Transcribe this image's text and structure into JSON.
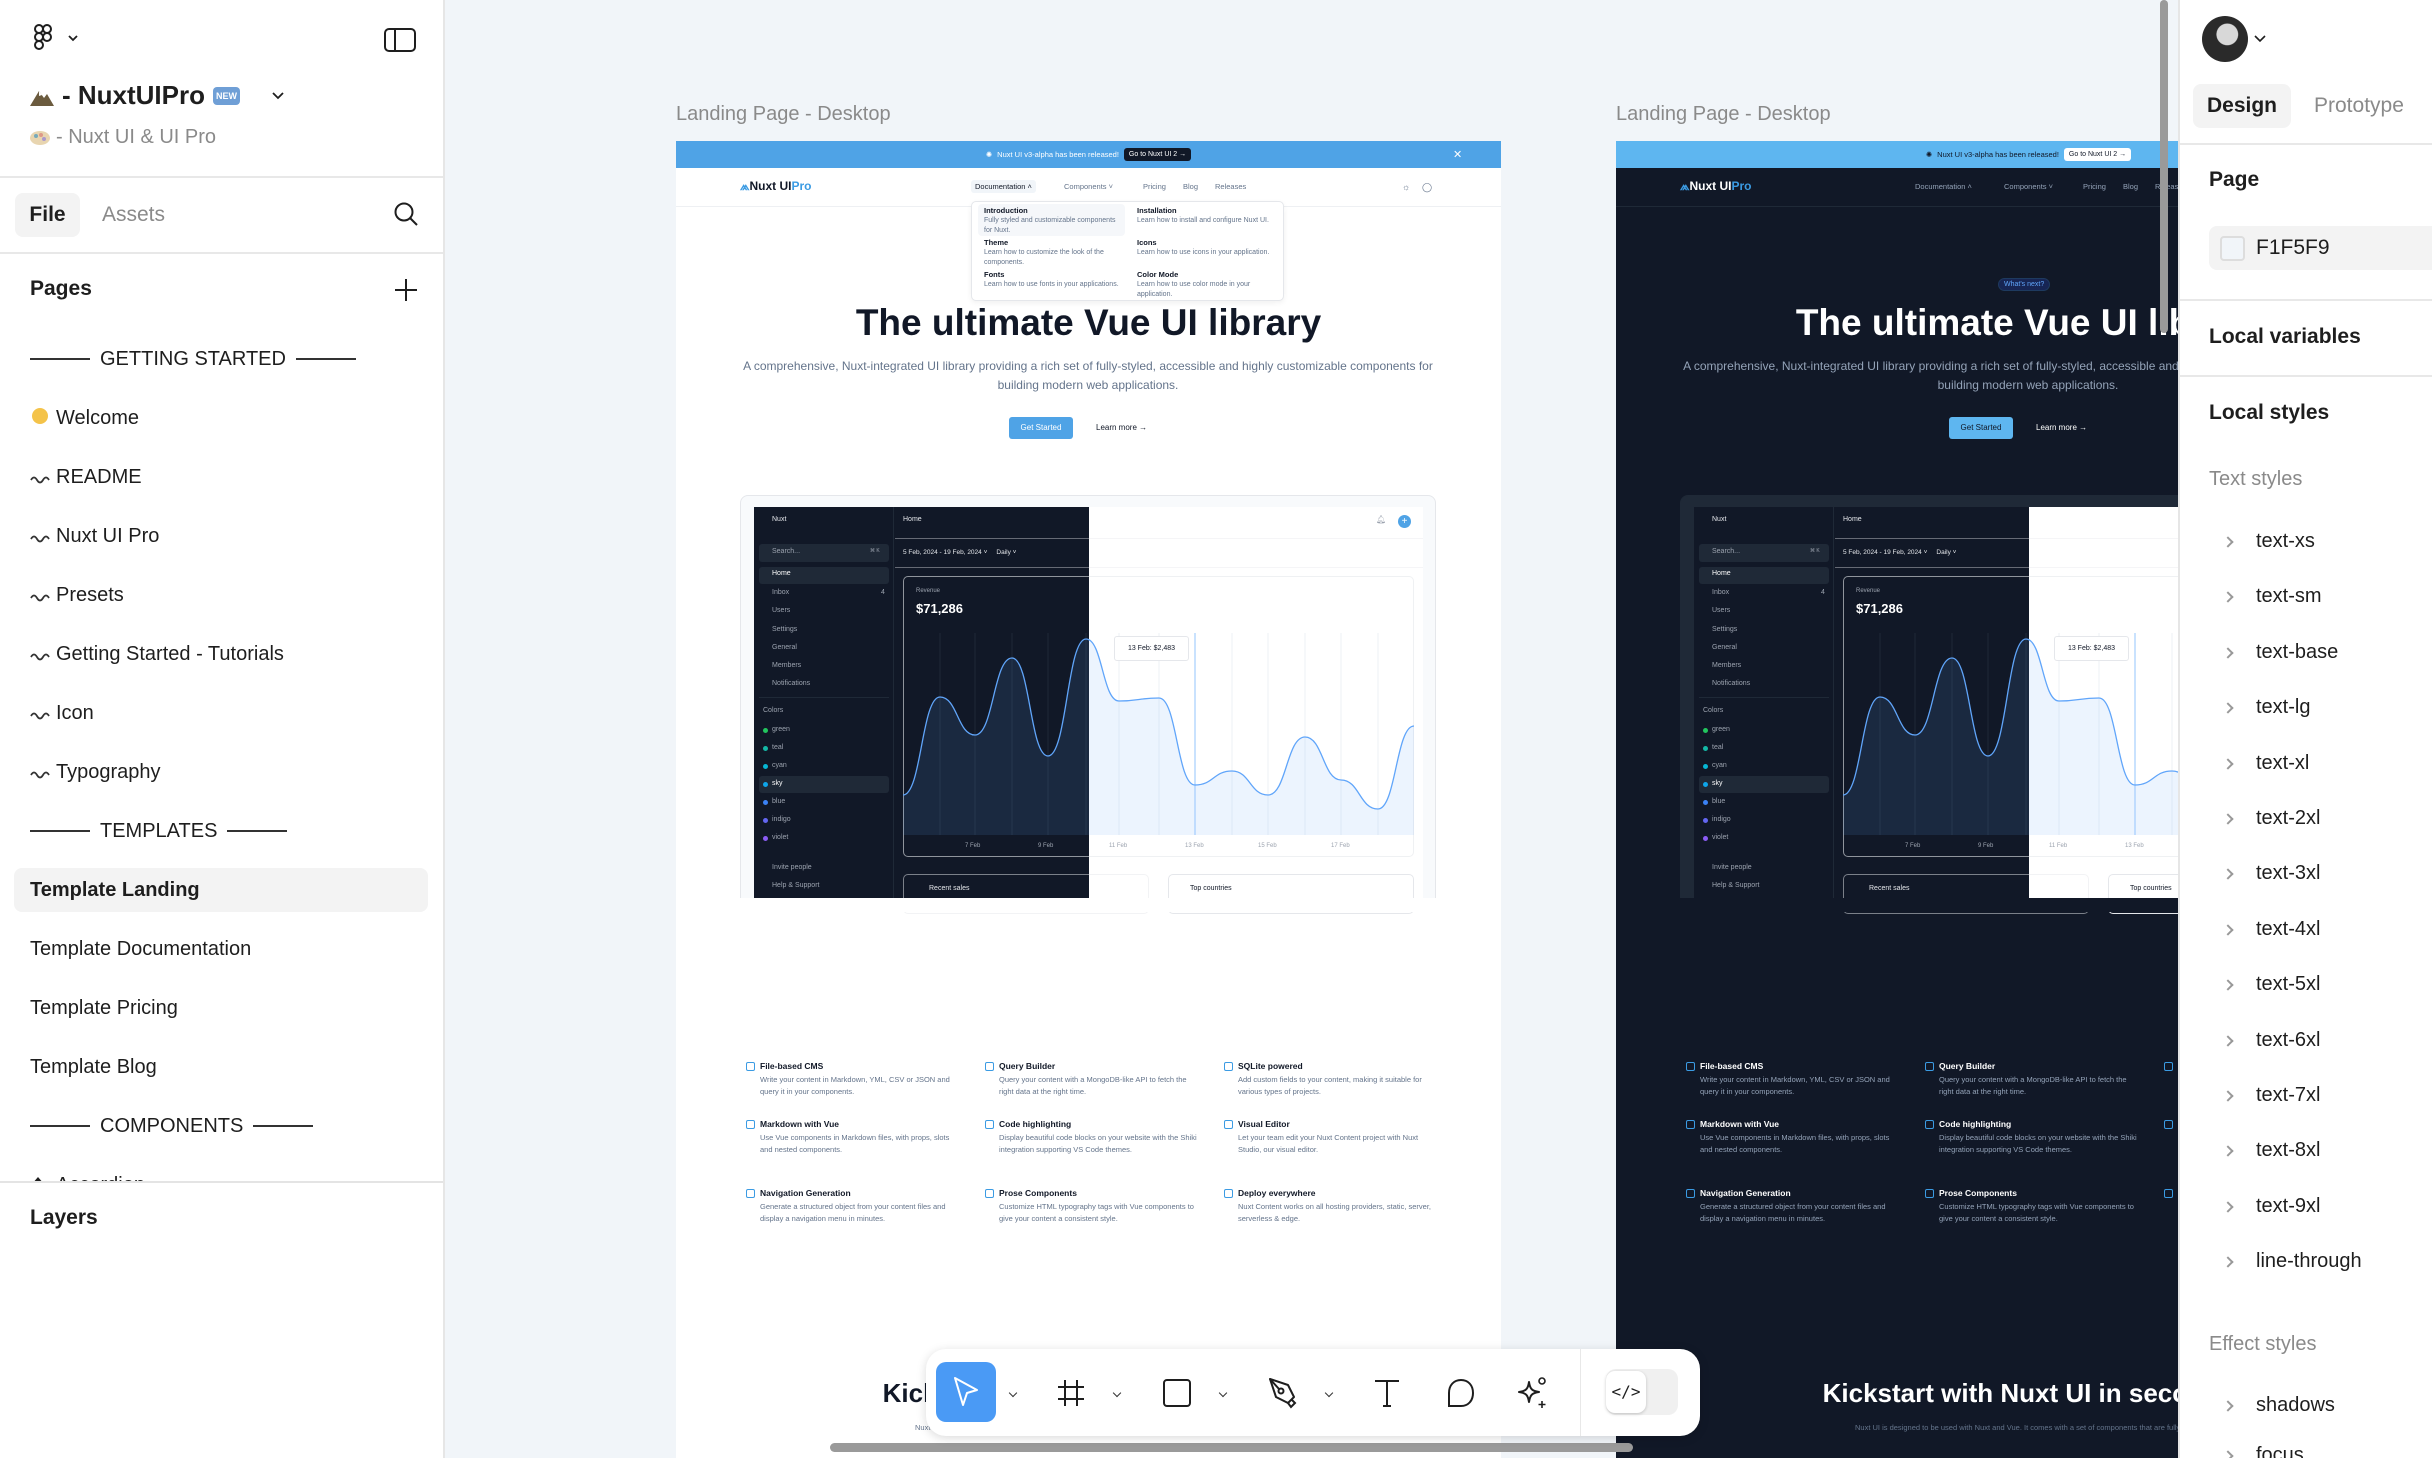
{
  "left": {
    "file_name": "- NuxtUIPro",
    "new_badge": "NEW",
    "project": "- Nuxt UI & UI Pro",
    "tabs": {
      "file": "File",
      "assets": "Assets"
    },
    "pages_title": "Pages",
    "pages": [
      {
        "type": "section",
        "label": "GETTING STARTED"
      },
      {
        "type": "page",
        "icon": "waving-hand-icon",
        "label": "Welcome"
      },
      {
        "type": "page",
        "icon": "wavy-dash-icon",
        "label": "README"
      },
      {
        "type": "page",
        "icon": "wavy-dash-icon",
        "label": "Nuxt UI Pro"
      },
      {
        "type": "page",
        "icon": "wavy-dash-icon",
        "label": "Presets"
      },
      {
        "type": "page",
        "icon": "wavy-dash-icon",
        "label": "Getting Started - Tutorials"
      },
      {
        "type": "page",
        "icon": "wavy-dash-icon",
        "label": "Icon"
      },
      {
        "type": "page",
        "icon": "wavy-dash-icon",
        "label": "Typography"
      },
      {
        "type": "section",
        "label": "TEMPLATES"
      },
      {
        "type": "page",
        "label": "Template Landing",
        "selected": true
      },
      {
        "type": "page",
        "label": "Template Documentation"
      },
      {
        "type": "page",
        "label": "Template Pricing"
      },
      {
        "type": "page",
        "label": "Template Blog"
      },
      {
        "type": "section",
        "label": "COMPONENTS"
      },
      {
        "type": "page",
        "icon": "diamond-icon",
        "label": "Accordion"
      }
    ],
    "layers_title": "Layers"
  },
  "canvas": {
    "background": "#F1F5F9",
    "frame_labels": [
      "Landing Page - Desktop",
      "Landing Page - Desktop"
    ],
    "site": {
      "banner_text": "Nuxt UI v3-alpha has been released!",
      "banner_button": "Go to Nuxt UI 2 →",
      "logo": "Nuxt UI",
      "logo_pro": "Pro",
      "nav": [
        "Documentation",
        "Components",
        "Pricing",
        "Blog",
        "Releases"
      ],
      "dropdown": [
        {
          "title": "Introduction",
          "desc": "Fully styled and customizable components for Nuxt."
        },
        {
          "title": "Installation",
          "desc": "Learn how to install and configure Nuxt UI."
        },
        {
          "title": "Theme",
          "desc": "Learn how to customize the look of the components."
        },
        {
          "title": "Icons",
          "desc": "Learn how to use icons in your application."
        },
        {
          "title": "Fonts",
          "desc": "Learn how to use fonts in your applications."
        },
        {
          "title": "Color Mode",
          "desc": "Learn how to use color mode in your application."
        }
      ],
      "badge": "What's next?",
      "hero_title": "The ultimate Vue UI library",
      "hero_subtitle": "A comprehensive, Nuxt-integrated UI library providing a rich set of fully-styled, accessible and highly customizable components for building modern web applications.",
      "get_started": "Get Started",
      "learn_more": "Learn more →",
      "dashboard": {
        "team": "Nuxt",
        "search": "Search...",
        "kbd": "⌘ K",
        "nav": [
          "Home",
          "Inbox",
          "Users",
          "Settings",
          "General",
          "Members",
          "Notifications"
        ],
        "inbox_count": "4",
        "colors_label": "Colors",
        "colors": [
          {
            "name": "green",
            "hex": "#22c55e"
          },
          {
            "name": "teal",
            "hex": "#14b8a6"
          },
          {
            "name": "cyan",
            "hex": "#06b6d4"
          },
          {
            "name": "sky",
            "hex": "#0ea5e9"
          },
          {
            "name": "blue",
            "hex": "#3b82f6"
          },
          {
            "name": "indigo",
            "hex": "#6366f1"
          },
          {
            "name": "violet",
            "hex": "#8b5cf6"
          }
        ],
        "invite": "Invite people",
        "help": "Help & Support",
        "page_title": "Home",
        "date_range": "5 Feb, 2024 - 19 Feb, 2024",
        "period": "Daily",
        "revenue_label": "Revenue",
        "revenue": "$71,286",
        "tooltip": "13 Feb: $2,483",
        "x_labels": [
          "7 Feb",
          "9 Feb",
          "11 Feb",
          "13 Feb",
          "15 Feb",
          "17 Feb"
        ],
        "recent_sales": "Recent sales",
        "top_countries": "Top countries"
      },
      "features": [
        {
          "icon": "file-icon",
          "title": "File-based CMS",
          "desc": "Write your content in Markdown, YML, CSV or JSON and query it in your components."
        },
        {
          "icon": "funnel-icon",
          "title": "Query Builder",
          "desc": "Query your content with a MongoDB-like API to fetch the right data at the right time."
        },
        {
          "icon": "database-icon",
          "title": "SQLite powered",
          "desc": "Add custom fields to your content, making it suitable for various types of projects."
        },
        {
          "icon": "markdown-icon",
          "title": "Markdown with Vue",
          "desc": "Use Vue components in Markdown files, with props, slots and nested components."
        },
        {
          "icon": "code-lines-icon",
          "title": "Code highlighting",
          "desc": "Display beautiful code blocks on your website with the Shiki integration supporting VS Code themes."
        },
        {
          "icon": "cursor-click-icon",
          "title": "Visual Editor",
          "desc": "Let your team edit your Nuxt Content project with Nuxt Studio, our visual editor."
        },
        {
          "icon": "sidebar-icon",
          "title": "Navigation Generation",
          "desc": "Generate a structured object from your content files and display a navigation menu in minutes."
        },
        {
          "icon": "heading-icon",
          "title": "Prose Components",
          "desc": "Customize HTML typography tags with Vue components to give your content a consistent style."
        },
        {
          "icon": "globe-icon",
          "title": "Deploy everywhere",
          "desc": "Nuxt Content works on all hosting providers, static, server, serverless & edge."
        }
      ],
      "kickstart": "Kickstart with Nuxt UI in seconds",
      "kickstart_sub": "Nuxt UI is designed to be used with Nuxt and Vue. It comes with a set of components that are fully styled"
    }
  },
  "toolbar": {
    "tools": [
      "move-tool",
      "frame-tool",
      "rectangle-tool",
      "pen-tool",
      "text-tool",
      "comment-tool",
      "ai-tool"
    ],
    "active": "move-tool",
    "accent": "#4A9AF5",
    "dev_mode": "</>"
  },
  "right": {
    "tabs": {
      "design": "Design",
      "prototype": "Prototype"
    },
    "page_label": "Page",
    "page_color": "F1F5F9",
    "local_variables": "Local variables",
    "local_styles": "Local styles",
    "text_styles_label": "Text styles",
    "text_styles": [
      "text-xs",
      "text-sm",
      "text-base",
      "text-lg",
      "text-xl",
      "text-2xl",
      "text-3xl",
      "text-4xl",
      "text-5xl",
      "text-6xl",
      "text-7xl",
      "text-8xl",
      "text-9xl",
      "line-through"
    ],
    "effect_styles_label": "Effect styles",
    "effect_styles": [
      "shadows",
      "focus"
    ]
  }
}
